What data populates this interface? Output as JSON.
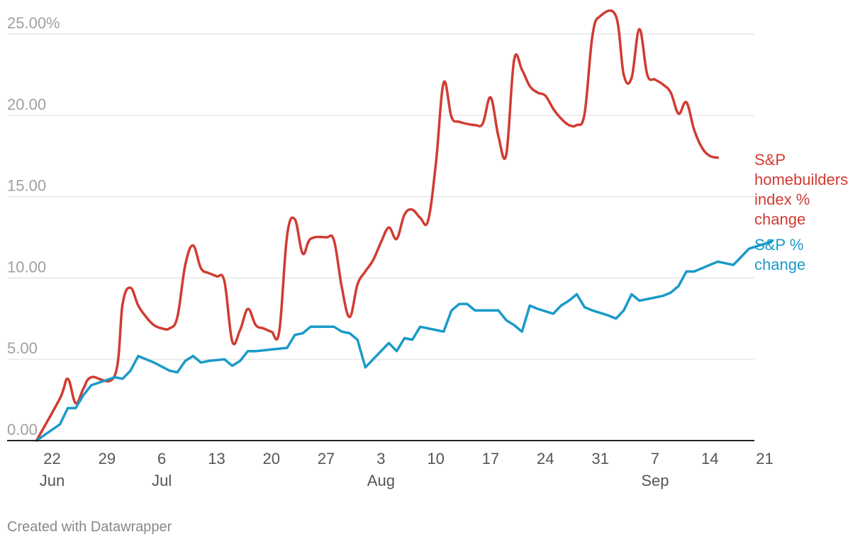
{
  "chart_data": {
    "type": "line",
    "title": "",
    "xlabel": "",
    "ylabel": "",
    "ylim": [
      0,
      25
    ],
    "y_ticks": [
      {
        "value": 0,
        "label": "0.00"
      },
      {
        "value": 5,
        "label": "5.00"
      },
      {
        "value": 10,
        "label": "10.00"
      },
      {
        "value": 15,
        "label": "15.00"
      },
      {
        "value": 20,
        "label": "20.00"
      },
      {
        "value": 25,
        "label": "25.00%"
      }
    ],
    "x_day_range": [
      0,
      94
    ],
    "x_ticks": [
      {
        "day": 1,
        "label": "22"
      },
      {
        "day": 8,
        "label": "29"
      },
      {
        "day": 15,
        "label": "6"
      },
      {
        "day": 22,
        "label": "13"
      },
      {
        "day": 29,
        "label": "20"
      },
      {
        "day": 36,
        "label": "27"
      },
      {
        "day": 43,
        "label": "3"
      },
      {
        "day": 50,
        "label": "10"
      },
      {
        "day": 57,
        "label": "17"
      },
      {
        "day": 64,
        "label": "24"
      },
      {
        "day": 71,
        "label": "31"
      },
      {
        "day": 78,
        "label": "7"
      },
      {
        "day": 85,
        "label": "14"
      },
      {
        "day": 92,
        "label": "21"
      }
    ],
    "month_labels": [
      {
        "day": 1,
        "label": "Jun"
      },
      {
        "day": 15,
        "label": "Jul"
      },
      {
        "day": 43,
        "label": "Aug"
      },
      {
        "day": 78,
        "label": "Sep"
      }
    ],
    "series": [
      {
        "name": "S&P homebuilders index % change",
        "label_lines": [
          "S&P",
          "homebuilders",
          "index %",
          "change"
        ],
        "color": "#d13b32",
        "points": [
          [
            -1,
            0
          ],
          [
            2,
            2.6
          ],
          [
            3,
            3.8
          ],
          [
            4,
            2.3
          ],
          [
            5,
            3.2
          ],
          [
            6,
            3.9
          ],
          [
            9,
            4
          ],
          [
            10,
            8.4
          ],
          [
            11,
            9.4
          ],
          [
            12,
            8.3
          ],
          [
            13,
            7.6
          ],
          [
            14,
            7.1
          ],
          [
            15,
            6.9
          ],
          [
            16,
            6.9
          ],
          [
            17,
            7.6
          ],
          [
            18,
            10.8
          ],
          [
            19,
            12
          ],
          [
            20,
            10.6
          ],
          [
            21,
            10.3
          ],
          [
            22,
            10.1
          ],
          [
            23,
            9.8
          ],
          [
            24,
            6.1
          ],
          [
            25,
            6.8
          ],
          [
            26,
            8.1
          ],
          [
            27,
            7.1
          ],
          [
            28,
            6.9
          ],
          [
            29,
            6.7
          ],
          [
            30,
            6.7
          ],
          [
            31,
            12.6
          ],
          [
            32,
            13.6
          ],
          [
            33,
            11.5
          ],
          [
            34,
            12.4
          ],
          [
            36,
            12.5
          ],
          [
            37,
            12.3
          ],
          [
            38,
            9.4
          ],
          [
            39,
            7.6
          ],
          [
            40,
            9.6
          ],
          [
            41,
            10.4
          ],
          [
            42,
            11.1
          ],
          [
            43,
            12.2
          ],
          [
            44,
            13.1
          ],
          [
            45,
            12.4
          ],
          [
            46,
            13.9
          ],
          [
            47,
            14.2
          ],
          [
            48,
            13.7
          ],
          [
            49,
            13.5
          ],
          [
            50,
            17
          ],
          [
            51,
            22
          ],
          [
            52,
            19.9
          ],
          [
            53,
            19.6
          ],
          [
            55,
            19.4
          ],
          [
            56,
            19.5
          ],
          [
            57,
            21.1
          ],
          [
            58,
            18.7
          ],
          [
            59,
            17.6
          ],
          [
            60,
            23.4
          ],
          [
            61,
            22.8
          ],
          [
            62,
            21.8
          ],
          [
            63,
            21.4
          ],
          [
            64,
            21.2
          ],
          [
            65,
            20.4
          ],
          [
            66,
            19.8
          ],
          [
            67,
            19.4
          ],
          [
            68,
            19.4
          ],
          [
            69,
            20.1
          ],
          [
            70,
            24.9
          ],
          [
            71,
            26.1
          ],
          [
            73,
            26.1
          ],
          [
            74,
            22.5
          ],
          [
            75,
            22.3
          ],
          [
            76,
            25.3
          ],
          [
            77,
            22.5
          ],
          [
            78,
            22.2
          ],
          [
            79,
            21.9
          ],
          [
            80,
            21.4
          ],
          [
            81,
            20.1
          ],
          [
            82,
            20.8
          ],
          [
            83,
            19.1
          ],
          [
            84,
            18
          ],
          [
            85,
            17.5
          ],
          [
            86,
            17.4
          ]
        ]
      },
      {
        "name": "S&P % change",
        "label_lines": [
          "S&P %",
          "change"
        ],
        "color": "#1a9ac9",
        "points": [
          [
            -1,
            0
          ],
          [
            2,
            1
          ],
          [
            3,
            2
          ],
          [
            4,
            2
          ],
          [
            5,
            2.8
          ],
          [
            6,
            3.4
          ],
          [
            9,
            3.9
          ],
          [
            10,
            3.8
          ],
          [
            11,
            4.3
          ],
          [
            12,
            5.2
          ],
          [
            13,
            5
          ],
          [
            14,
            4.8
          ],
          [
            16,
            4.3
          ],
          [
            17,
            4.2
          ],
          [
            18,
            4.9
          ],
          [
            19,
            5.2
          ],
          [
            20,
            4.8
          ],
          [
            21,
            4.9
          ],
          [
            23,
            5
          ],
          [
            24,
            4.6
          ],
          [
            25,
            4.9
          ],
          [
            26,
            5.5
          ],
          [
            27,
            5.5
          ],
          [
            29,
            5.6
          ],
          [
            31,
            5.7
          ],
          [
            32,
            6.5
          ],
          [
            33,
            6.6
          ],
          [
            34,
            7
          ],
          [
            36,
            7
          ],
          [
            37,
            7
          ],
          [
            38,
            6.7
          ],
          [
            39,
            6.6
          ],
          [
            40,
            6.2
          ],
          [
            41,
            4.5
          ],
          [
            42,
            5
          ],
          [
            43,
            5.5
          ],
          [
            44,
            6
          ],
          [
            45,
            5.5
          ],
          [
            46,
            6.3
          ],
          [
            47,
            6.2
          ],
          [
            48,
            7
          ],
          [
            50,
            6.8
          ],
          [
            51,
            6.7
          ],
          [
            52,
            8
          ],
          [
            53,
            8.4
          ],
          [
            54,
            8.4
          ],
          [
            55,
            8
          ],
          [
            57,
            8
          ],
          [
            58,
            8
          ],
          [
            59,
            7.4
          ],
          [
            60,
            7.1
          ],
          [
            61,
            6.7
          ],
          [
            62,
            8.3
          ],
          [
            63,
            8.1
          ],
          [
            65,
            7.8
          ],
          [
            66,
            8.3
          ],
          [
            67,
            8.6
          ],
          [
            68,
            9
          ],
          [
            69,
            8.2
          ],
          [
            70,
            8
          ],
          [
            72,
            7.7
          ],
          [
            73,
            7.5
          ],
          [
            74,
            8
          ],
          [
            75,
            9
          ],
          [
            76,
            8.6
          ],
          [
            78,
            8.8
          ],
          [
            79,
            8.9
          ],
          [
            80,
            9.1
          ],
          [
            81,
            9.5
          ],
          [
            82,
            10.4
          ],
          [
            83,
            10.4
          ],
          [
            84,
            10.6
          ],
          [
            85,
            10.8
          ],
          [
            86,
            11
          ],
          [
            87,
            10.9
          ],
          [
            88,
            10.8
          ],
          [
            89,
            11.3
          ],
          [
            90,
            11.8
          ],
          [
            92,
            12.1
          ],
          [
            93,
            12.3
          ]
        ]
      }
    ]
  },
  "footer": {
    "credit": "Created with Datawrapper"
  }
}
